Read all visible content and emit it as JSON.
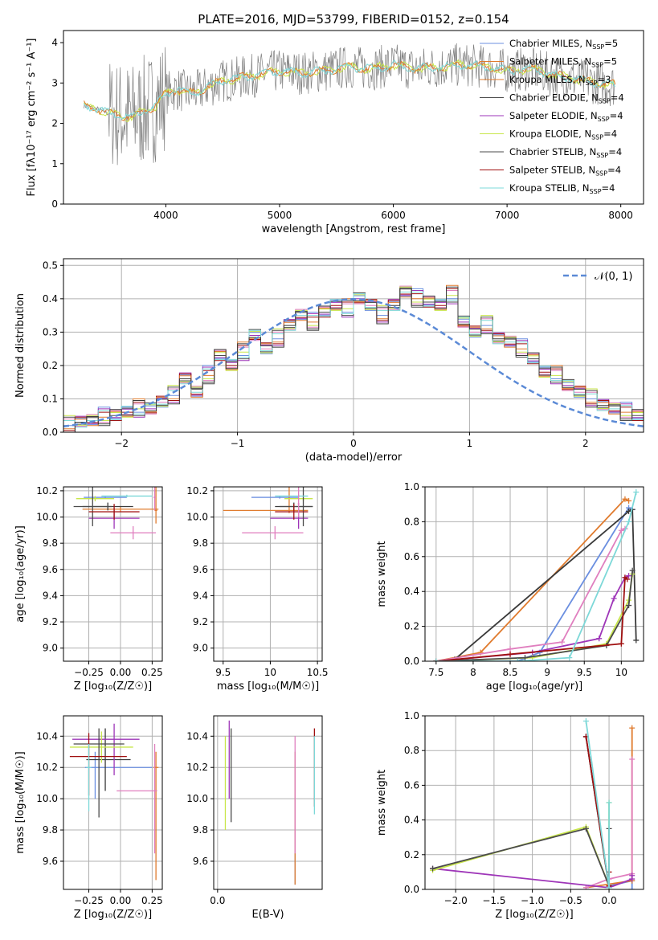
{
  "figure_title": "PLATE=2016, MJD=53799, FIBERID=0152, z=0.154",
  "colors": [
    "#6b8fe0",
    "#e07b2e",
    "#3a3a3a",
    "#e07fbf",
    "#9e35b8",
    "#c8e64a",
    "#4b4b4b",
    "#a01010",
    "#7dd8d8"
  ],
  "chart_data": [
    {
      "id": "spectrum",
      "type": "line",
      "title": "PLATE=2016, MJD=53799, FIBERID=0152, z=0.154",
      "xlabel": "wavelength [Angstrom, rest frame]",
      "ylabel": "Flux [fλ10⁻¹⁷ erg cm⁻² s⁻¹ A⁻¹]",
      "xlim": [
        3100,
        8200
      ],
      "ylim": [
        0,
        4.3
      ],
      "xticks": [
        4000,
        5000,
        6000,
        7000,
        8000
      ],
      "yticks": [
        0,
        1,
        2,
        3,
        4
      ],
      "legend_position": "right",
      "series": [
        {
          "name": "Chabrier MILES, N_SSP=5"
        },
        {
          "name": "Salpeter MILES, N_SSP=5"
        },
        {
          "name": "Kroupa MILES, N_SSP=3"
        },
        {
          "name": "Chabrier ELODIE, N_SSP=4"
        },
        {
          "name": "Salpeter ELODIE, N_SSP=4"
        },
        {
          "name": "Kroupa ELODIE, N_SSP=4"
        },
        {
          "name": "Chabrier STELIB, N_SSP=4"
        },
        {
          "name": "Salpeter STELIB, N_SSP=4"
        },
        {
          "name": "Kroupa STELIB, N_SSP=4"
        }
      ],
      "data_continuum": {
        "x": [
          3280,
          3500,
          3600,
          3700,
          3800,
          3900,
          4000,
          4100,
          4200,
          4300,
          4400,
          4500,
          4600,
          4800,
          5000,
          5200,
          5400,
          5600,
          5800,
          6000,
          6200,
          6400,
          6600,
          6800,
          7000,
          7200,
          7400,
          7600,
          7800,
          7950
        ],
        "y": [
          2.45,
          2.25,
          2.2,
          2.15,
          2.3,
          2.4,
          2.75,
          2.85,
          2.75,
          2.8,
          2.95,
          3.05,
          3.1,
          3.2,
          3.3,
          3.25,
          3.3,
          3.4,
          3.35,
          3.45,
          3.35,
          3.4,
          3.45,
          3.4,
          3.3,
          3.35,
          3.2,
          3.1,
          3.0,
          2.95
        ]
      }
    },
    {
      "id": "residuals",
      "type": "line",
      "xlabel": "(data-model)/error",
      "ylabel": "Normed distribution",
      "xlim": [
        -2.5,
        2.5
      ],
      "ylim": [
        0,
        0.52
      ],
      "xticks": [
        -2,
        -1,
        0,
        1,
        2
      ],
      "yticks": [
        0.0,
        0.1,
        0.2,
        0.3,
        0.4,
        0.5
      ],
      "legend": "𝒩(0, 1)",
      "legend_position": "top-right",
      "hist_edges_step": 0.1,
      "hist_values": [
        0.02,
        0.03,
        0.035,
        0.045,
        0.05,
        0.06,
        0.07,
        0.07,
        0.09,
        0.11,
        0.16,
        0.12,
        0.17,
        0.23,
        0.2,
        0.24,
        0.29,
        0.25,
        0.28,
        0.32,
        0.35,
        0.33,
        0.36,
        0.38,
        0.37,
        0.4,
        0.38,
        0.35,
        0.38,
        0.42,
        0.4,
        0.39,
        0.38,
        0.41,
        0.33,
        0.3,
        0.32,
        0.28,
        0.27,
        0.25,
        0.22,
        0.18,
        0.17,
        0.14,
        0.12,
        0.1,
        0.08,
        0.07,
        0.06,
        0.05
      ]
    },
    {
      "id": "age_vs_Z",
      "type": "scatter",
      "xlabel": "Z [log₁₀(Z/Z☉)]",
      "ylabel": "age  [log₁₀(age/yr)]",
      "xlim": [
        -0.45,
        0.33
      ],
      "ylim": [
        8.9,
        10.23
      ],
      "xticks": [
        -0.25,
        0.0,
        0.25
      ],
      "xticklabels": [
        "−0.25",
        "0.00",
        "0.25"
      ],
      "yticks": [
        9.0,
        9.2,
        9.4,
        9.6,
        9.8,
        10.0,
        10.2
      ],
      "points": [
        {
          "x": -0.12,
          "y": 10.15,
          "xerr": [
            0.17,
            0.17
          ],
          "yerr": [
            0.01,
            0.01
          ],
          "c": 0
        },
        {
          "x": 0.0,
          "y": 10.06,
          "xerr": [
            0.3,
            0.3
          ],
          "yerr": [
            0.02,
            0.02
          ],
          "c": 1
        },
        {
          "x": -0.1,
          "y": 10.08,
          "xerr": [
            0.2,
            0.2
          ],
          "yerr": [
            0.03,
            0.03
          ],
          "c": 2
        },
        {
          "x": 0.1,
          "y": 9.88,
          "xerr": [
            0.18,
            0.18
          ],
          "yerr": [
            0.05,
            0.05
          ],
          "c": 3
        },
        {
          "x": -0.05,
          "y": 9.99,
          "xerr": [
            0.2,
            0.2
          ],
          "yerr": [
            0.08,
            0.08
          ],
          "c": 4
        },
        {
          "x": -0.2,
          "y": 10.14,
          "xerr": [
            0.15,
            0.15
          ],
          "yerr": [
            0.02,
            0.02
          ],
          "c": 5
        },
        {
          "x": -0.22,
          "y": 10.08,
          "xerr": [
            0.15,
            0.15
          ],
          "yerr": [
            0.15,
            0.15
          ],
          "c": 6
        },
        {
          "x": -0.05,
          "y": 10.04,
          "xerr": [
            0.2,
            0.2
          ],
          "yerr": [
            0.06,
            0.06
          ],
          "c": 7
        },
        {
          "x": 0.05,
          "y": 10.16,
          "xerr": [
            0.2,
            0.2
          ],
          "yerr": [
            0.01,
            0.01
          ],
          "c": 8
        },
        {
          "x": 0.28,
          "y": 10.05,
          "xerr": [
            0.01,
            0.01
          ],
          "yerr": [
            0.1,
            1.08
          ],
          "c": 1
        },
        {
          "x": 0.27,
          "y": 10.15,
          "xerr": [
            0.01,
            0.01
          ],
          "yerr": [
            0.1,
            0.42
          ],
          "c": 3
        }
      ]
    },
    {
      "id": "age_vs_mass",
      "type": "scatter",
      "xlabel": "mass [log₁₀(M/M☉)]",
      "ylabel": "",
      "xlim": [
        9.4,
        10.55
      ],
      "ylim": [
        8.9,
        10.23
      ],
      "xticks": [
        9.5,
        10.0,
        10.5
      ],
      "yticks": [
        9.0,
        9.2,
        9.4,
        9.6,
        9.8,
        10.0,
        10.2
      ],
      "points": [
        {
          "x": 10.1,
          "y": 10.15,
          "xerr": [
            0.3,
            0.2
          ],
          "yerr": [
            0.01,
            0.01
          ],
          "c": 0
        },
        {
          "x": 10.2,
          "y": 10.05,
          "xerr": [
            0.7,
            0.2
          ],
          "yerr": [
            0.02,
            1.08
          ],
          "c": 1
        },
        {
          "x": 10.25,
          "y": 10.08,
          "xerr": [
            0.2,
            0.2
          ],
          "yerr": [
            0.03,
            0.03
          ],
          "c": 2
        },
        {
          "x": 10.05,
          "y": 9.88,
          "xerr": [
            0.35,
            0.3
          ],
          "yerr": [
            0.05,
            0.05
          ],
          "c": 3
        },
        {
          "x": 10.3,
          "y": 9.99,
          "xerr": [
            0.3,
            0.1
          ],
          "yerr": [
            0.08,
            0.08
          ],
          "c": 4
        },
        {
          "x": 10.35,
          "y": 10.14,
          "xerr": [
            0.2,
            0.1
          ],
          "yerr": [
            0.02,
            0.02
          ],
          "c": 5
        },
        {
          "x": 10.35,
          "y": 10.08,
          "xerr": [
            0.25,
            0.1
          ],
          "yerr": [
            0.15,
            0.15
          ],
          "c": 6
        },
        {
          "x": 10.25,
          "y": 10.04,
          "xerr": [
            0.2,
            0.15
          ],
          "yerr": [
            0.06,
            0.06
          ],
          "c": 7
        },
        {
          "x": 10.3,
          "y": 10.16,
          "xerr": [
            0.25,
            0.1
          ],
          "yerr": [
            0.01,
            0.01
          ],
          "c": 8
        },
        {
          "x": 10.3,
          "y": 10.1,
          "xerr": [
            0.01,
            0.01
          ],
          "yerr": [
            0.1,
            0.2
          ],
          "c": 3
        }
      ]
    },
    {
      "id": "massweight_vs_age",
      "type": "line",
      "xlabel": "age  [log₁₀(age/yr)]",
      "ylabel": "mass weight",
      "xlim": [
        7.35,
        10.3
      ],
      "ylim": [
        0,
        1.0
      ],
      "xticks": [
        7.5,
        8.0,
        8.5,
        9.0,
        9.5,
        10.0
      ],
      "yticks": [
        0.0,
        0.2,
        0.4,
        0.6,
        0.8,
        1.0
      ],
      "series": [
        {
          "c": 0,
          "x": [
            7.5,
            8.6,
            8.9,
            10.1,
            10.15
          ],
          "y": [
            0.0,
            0.0,
            0.05,
            0.88,
            0.87
          ]
        },
        {
          "c": 1,
          "x": [
            7.5,
            8.1,
            10.05,
            10.1
          ],
          "y": [
            0.0,
            0.05,
            0.93,
            0.92
          ]
        },
        {
          "c": 2,
          "x": [
            7.75,
            10.1,
            10.15,
            10.2
          ],
          "y": [
            0.01,
            0.86,
            0.87,
            0.12
          ]
        },
        {
          "c": 3,
          "x": [
            7.5,
            8.5,
            9.2,
            10.0,
            10.05
          ],
          "y": [
            0.0,
            0.07,
            0.11,
            0.75,
            0.76
          ]
        },
        {
          "c": 4,
          "x": [
            7.5,
            8.8,
            9.7,
            9.9,
            10.05,
            10.1
          ],
          "y": [
            0.0,
            0.05,
            0.13,
            0.36,
            0.48,
            0.49
          ]
        },
        {
          "c": 5,
          "x": [
            7.5,
            8.8,
            9.8,
            10.1,
            10.15
          ],
          "y": [
            0.0,
            0.02,
            0.1,
            0.35,
            0.5
          ],
          "note": ""
        },
        {
          "c": 6,
          "x": [
            7.5,
            8.7,
            9.8,
            10.1,
            10.15
          ],
          "y": [
            0.0,
            0.02,
            0.09,
            0.32,
            0.52
          ]
        },
        {
          "c": 7,
          "x": [
            7.5,
            8.5,
            10.0,
            10.05,
            10.08
          ],
          "y": [
            0.0,
            0.04,
            0.1,
            0.48,
            0.47
          ]
        },
        {
          "c": 8,
          "x": [
            7.5,
            8.6,
            9.3,
            10.1,
            10.2
          ],
          "y": [
            0.0,
            0.0,
            0.02,
            0.8,
            0.97
          ]
        }
      ]
    },
    {
      "id": "mass_vs_Z",
      "type": "scatter",
      "xlabel": "Z [log₁₀(Z/Z☉)]",
      "ylabel": "mass [log₁₀(M/M☉)]",
      "xlim": [
        -0.45,
        0.33
      ],
      "ylim": [
        9.42,
        10.53
      ],
      "xticks": [
        -0.25,
        0.0,
        0.25
      ],
      "xticklabels": [
        "−0.25",
        "0.00",
        "0.25"
      ],
      "yticks": [
        9.6,
        9.8,
        10.0,
        10.2,
        10.4
      ],
      "points": [
        {
          "x": -0.2,
          "y": 10.2,
          "xerr": [
            0.08,
            0.45
          ],
          "yerr": [
            0.2,
            0.1
          ],
          "c": 0
        },
        {
          "x": 0.28,
          "y": 10.2,
          "xerr": [
            0.02,
            0.02
          ],
          "yerr": [
            0.72,
            0.1
          ],
          "c": 1
        },
        {
          "x": -0.12,
          "y": 10.25,
          "xerr": [
            0.15,
            0.2
          ],
          "yerr": [
            0.2,
            0.2
          ],
          "c": 2
        },
        {
          "x": 0.27,
          "y": 10.05,
          "xerr": [
            0.3,
            0.02
          ],
          "yerr": [
            0.4,
            0.3
          ],
          "c": 3
        },
        {
          "x": -0.05,
          "y": 10.38,
          "xerr": [
            0.33,
            0.2
          ],
          "yerr": [
            0.23,
            0.1
          ],
          "c": 4
        },
        {
          "x": -0.15,
          "y": 10.33,
          "xerr": [
            0.25,
            0.25
          ],
          "yerr": [
            0.1,
            0.1
          ],
          "c": 5
        },
        {
          "x": -0.17,
          "y": 10.35,
          "xerr": [
            0.2,
            0.2
          ],
          "yerr": [
            0.47,
            0.1
          ],
          "c": 6
        },
        {
          "x": -0.25,
          "y": 10.27,
          "xerr": [
            0.15,
            0.3
          ],
          "yerr": [
            0.25,
            0.15
          ],
          "c": 7
        },
        {
          "x": -0.25,
          "y": 10.2,
          "xerr": [
            0.02,
            0.02
          ],
          "yerr": [
            0.28,
            0.15
          ],
          "c": 8
        }
      ]
    },
    {
      "id": "mass_vs_EBV",
      "type": "scatter",
      "xlabel": "E(B-V)",
      "ylabel": "",
      "xlim": [
        -0.01,
        0.27
      ],
      "ylim": [
        9.42,
        10.53
      ],
      "xticks": [
        0.0
      ],
      "xticklabels": [
        "0.0"
      ],
      "yticks": [
        9.6,
        9.8,
        10.0,
        10.2,
        10.4
      ],
      "points": [
        {
          "x": 0.2,
          "y": 10.0,
          "yerr": [
            0.55,
            0.3
          ],
          "c": 0
        },
        {
          "x": 0.2,
          "y": 10.0,
          "yerr": [
            0.55,
            0.3
          ],
          "c": 1
        },
        {
          "x": 0.2,
          "y": 10.1,
          "yerr": [
            0.45,
            0.3
          ],
          "c": 3
        },
        {
          "x": 0.03,
          "y": 10.2,
          "yerr": [
            0.2,
            0.3
          ],
          "c": 4
        },
        {
          "x": 0.02,
          "y": 10.1,
          "yerr": [
            0.3,
            0.3
          ],
          "c": 5
        },
        {
          "x": 0.035,
          "y": 10.1,
          "yerr": [
            0.25,
            0.35
          ],
          "c": 6
        },
        {
          "x": 0.25,
          "y": 10.2,
          "yerr": [
            0.25,
            0.25
          ],
          "c": 7
        },
        {
          "x": 0.25,
          "y": 10.15,
          "yerr": [
            0.25,
            0.25
          ],
          "c": 8
        }
      ]
    },
    {
      "id": "massweight_vs_Z",
      "type": "line",
      "xlabel": "Z [log₁₀(Z/Z☉)]",
      "ylabel": "mass weight",
      "xlim": [
        -2.4,
        0.45
      ],
      "ylim": [
        0,
        1.0
      ],
      "xticks": [
        -2.0,
        -1.5,
        -1.0,
        -0.5,
        0.0
      ],
      "xticklabels": [
        "−2.0",
        "−1.5",
        "−1.0",
        "−0.5",
        "0.0"
      ],
      "yticks": [
        0.0,
        0.2,
        0.4,
        0.6,
        0.8,
        1.0
      ],
      "series": [
        {
          "c": 0,
          "x": [
            -0.3,
            0.0,
            0.3,
            0.3
          ],
          "y": [
            0.88,
            0.02,
            0.05,
            0.0
          ]
        },
        {
          "c": 1,
          "x": [
            -0.3,
            0.3,
            0.3
          ],
          "y": [
            0.01,
            0.05,
            0.93
          ]
        },
        {
          "c": 2,
          "x": [
            -0.3,
            0.0,
            0.0
          ],
          "y": [
            0.88,
            0.01,
            0.02
          ]
        },
        {
          "c": 3,
          "x": [
            -0.3,
            0.0,
            0.3,
            0.3
          ],
          "y": [
            0.01,
            0.06,
            0.09,
            0.75
          ]
        },
        {
          "c": 4,
          "x": [
            -2.3,
            0.0,
            0.3,
            0.3
          ],
          "y": [
            0.12,
            0.01,
            0.06,
            0.08
          ]
        },
        {
          "c": 5,
          "x": [
            -2.3,
            -0.3,
            0.0,
            0.0
          ],
          "y": [
            0.11,
            0.36,
            0.02,
            0.5
          ]
        },
        {
          "c": 6,
          "x": [
            -2.3,
            -0.3,
            0.0,
            0.0
          ],
          "y": [
            0.12,
            0.35,
            0.02,
            0.35
          ]
        },
        {
          "c": 7,
          "x": [
            -0.3,
            0.0,
            0.0
          ],
          "y": [
            0.88,
            0.02,
            0.1
          ]
        },
        {
          "c": 8,
          "x": [
            -0.3,
            0.0,
            0.0
          ],
          "y": [
            0.97,
            0.01,
            0.5
          ]
        }
      ]
    }
  ]
}
